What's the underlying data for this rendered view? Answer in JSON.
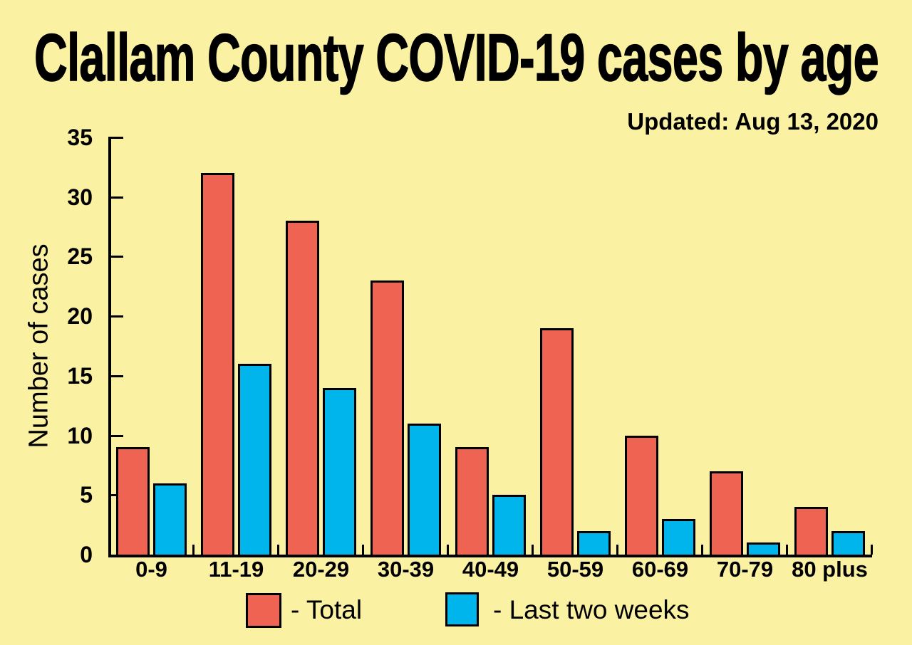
{
  "header": {
    "title": "Clallam County COVID-19 cases by age",
    "updated": "Updated: Aug 13, 2020"
  },
  "chart_data": {
    "type": "bar",
    "title": "Clallam County COVID-19 cases by age",
    "subtitle": "Updated: Aug 13, 2020",
    "categories": [
      "0-9",
      "11-19",
      "20-29",
      "30-39",
      "40-49",
      "50-59",
      "60-69",
      "70-79",
      "80 plus"
    ],
    "series": [
      {
        "name": "Total",
        "color": "#EE6352",
        "values": [
          9,
          32,
          28,
          23,
          9,
          19,
          10,
          7,
          4
        ]
      },
      {
        "name": "Last two weeks",
        "color": "#00B5EC",
        "values": [
          6,
          16,
          14,
          11,
          5,
          2,
          3,
          1,
          2
        ]
      }
    ],
    "xlabel": "",
    "ylabel": "Number of cases",
    "ylim": [
      0,
      35
    ],
    "yticks": [
      0,
      5,
      10,
      15,
      20,
      25,
      30,
      35
    ],
    "grid": false,
    "legend_position": "bottom"
  },
  "legend": {
    "items": [
      {
        "label": "- Total",
        "color": "#EE6352"
      },
      {
        "label": "- Last two weeks",
        "color": "#00B5EC"
      }
    ]
  },
  "colors": {
    "background": "#FAF2A2",
    "axis": "#000000",
    "total_bar": "#EE6352",
    "last_two_weeks_bar": "#00B5EC"
  }
}
